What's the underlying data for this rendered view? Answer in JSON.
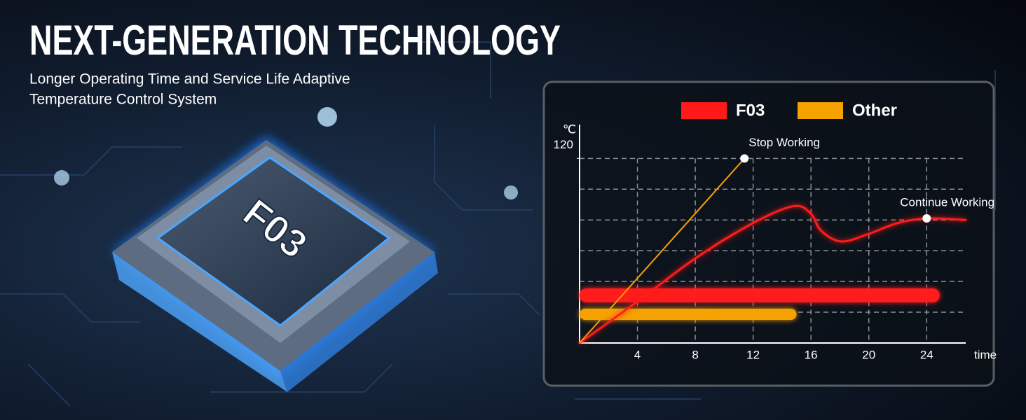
{
  "header": {
    "title": "NEXT-GENERATION TECHNOLOGY",
    "subtitle_lines": [
      "Longer Operating Time and Service Life Adaptive",
      "Temperature Control System"
    ]
  },
  "chip": {
    "label": "F03"
  },
  "chart_data": {
    "type": "line",
    "x_label": "time",
    "y_label": "℃",
    "xlim": [
      0,
      26.7
    ],
    "ylim": [
      0,
      142
    ],
    "xticks": [
      4,
      8,
      12,
      16,
      20,
      24
    ],
    "yticks": [
      120
    ],
    "ygrid": [
      20,
      40,
      60,
      80,
      100,
      120
    ],
    "grid": true,
    "legend": "top",
    "series": [
      {
        "name": "F03",
        "color": "#ff1a1a",
        "x": [
          0,
          4,
          8,
          12,
          14.8,
          16,
          16.7,
          18.1,
          20,
          22,
          24,
          26.7
        ],
        "values": [
          0,
          27,
          55,
          78,
          89,
          84,
          73,
          66,
          71,
          78,
          81,
          80
        ],
        "duration": 24.9
      },
      {
        "name": "Other",
        "color": "#f5a100",
        "x": [
          0,
          11.4
        ],
        "values": [
          0,
          120
        ],
        "duration": 15
      }
    ],
    "annotations": [
      {
        "text": "Stop Working",
        "x": 11.4,
        "y": 120
      },
      {
        "text": "Continue Working",
        "x": 24,
        "y": 81
      }
    ]
  }
}
